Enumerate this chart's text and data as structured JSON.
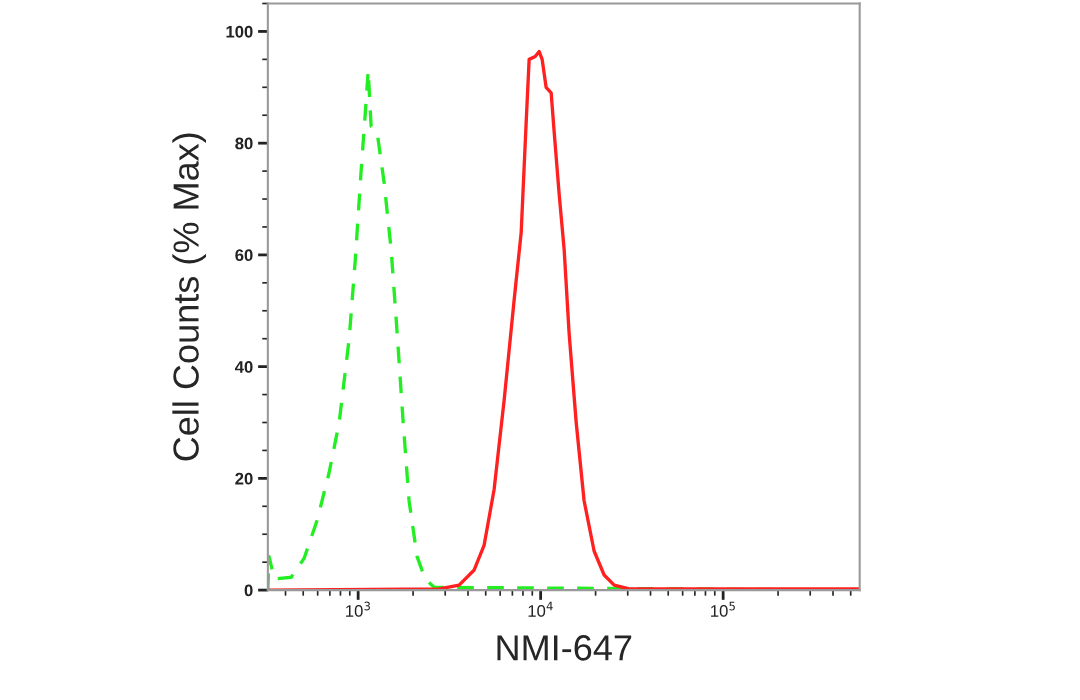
{
  "chart_data": {
    "type": "line",
    "xlabel": "NMI-647",
    "ylabel": "Cell Counts (% Max)",
    "log": "x",
    "xlim": [
      320,
      560000
    ],
    "xticks": [
      {
        "value": 1000,
        "label": "10$^{3}$"
      },
      {
        "value": 10000,
        "label": "10$^{4}$"
      },
      {
        "value": 100000,
        "label": "10$^{5}$"
      }
    ],
    "ylim": [
      0,
      105
    ],
    "yticks": [
      0,
      20,
      40,
      60,
      80,
      100
    ],
    "grid": false,
    "legend": false,
    "series": [
      {
        "color": "#22ee22",
        "line_style": "dashed",
        "x": [
          320,
          325,
          347,
          430,
          506,
          596,
          693,
          787,
          893,
          964,
          1038,
          1106,
          1135,
          1178,
          1270,
          1387,
          1516,
          1636,
          1765,
          1901,
          2104,
          2328,
          2608,
          560000
        ],
        "values": [
          0,
          6,
          2,
          2.3,
          5.7,
          12.5,
          21,
          30,
          45,
          59,
          75,
          87.5,
          93,
          83,
          82,
          73,
          61,
          46,
          30,
          16,
          6,
          2,
          0.5,
          0
        ]
      },
      {
        "color": "#ff2020",
        "line_style": "solid",
        "x": [
          320,
          2780,
          3573,
          4324,
          4898,
          5559,
          6310,
          7161,
          7822,
          8337,
          8650,
          9333,
          9818,
          10190,
          10715,
          11420,
          11860,
          12620,
          13450,
          14320,
          15660,
          17300,
          19630,
          22280,
          25290,
          30550,
          560000
        ],
        "values": [
          0,
          0.2,
          0.9,
          3.6,
          8,
          18,
          34,
          52,
          64,
          84,
          95,
          95.5,
          96.4,
          95,
          90,
          89,
          82,
          71,
          61,
          46,
          30,
          16,
          7,
          2.7,
          0.9,
          0.2,
          0.2
        ]
      }
    ]
  }
}
